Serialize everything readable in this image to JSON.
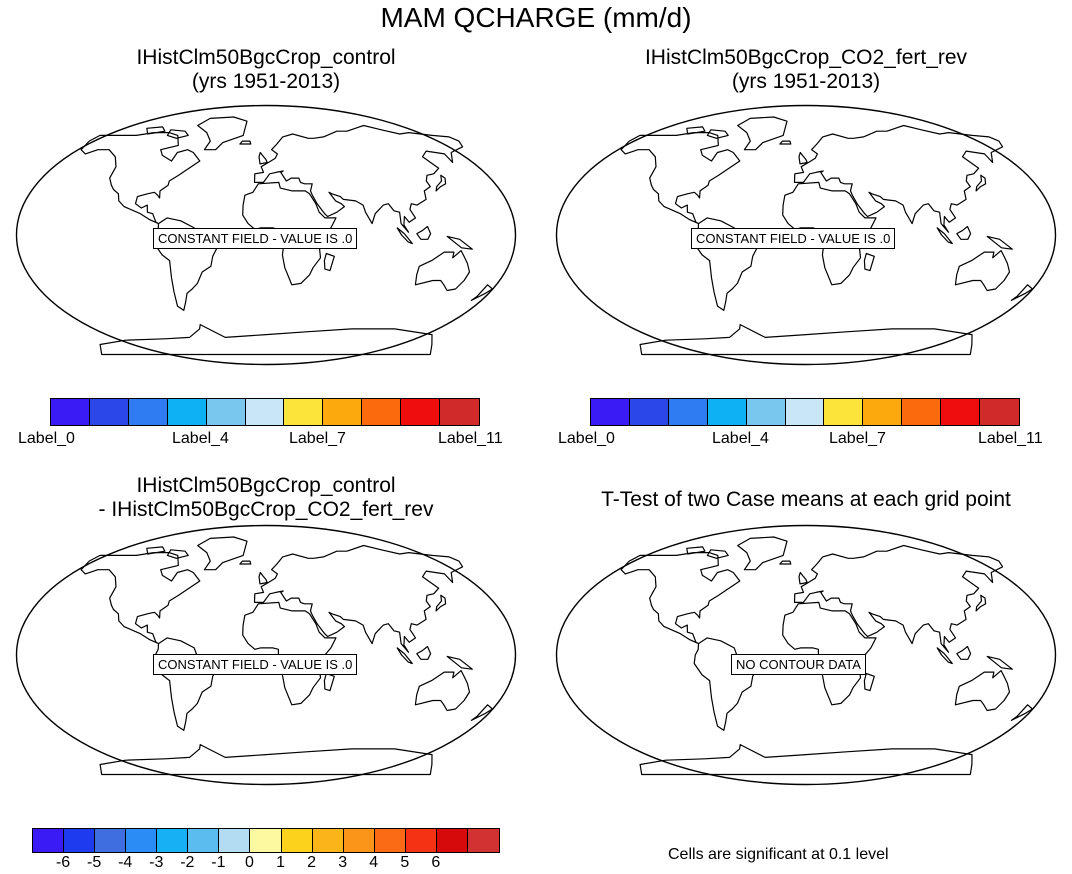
{
  "title": "MAM QCHARGE (mm/d)",
  "panels": [
    {
      "title_line1": "IHistClm50BgcCrop_control",
      "title_line2": "(yrs 1951-2013)",
      "message": "CONSTANT FIELD - VALUE IS .0"
    },
    {
      "title_line1": "IHistClm50BgcCrop_CO2_fert_rev",
      "title_line2": "(yrs 1951-2013)",
      "message": "CONSTANT FIELD - VALUE IS .0"
    },
    {
      "title_line1": "IHistClm50BgcCrop_control",
      "title_line2": "- IHistClm50BgcCrop_CO2_fert_rev",
      "message": "CONSTANT FIELD - VALUE IS .0"
    },
    {
      "title_line1": "T-Test of two Case means at each grid point",
      "title_line2": "",
      "message": "NO CONTOUR DATA"
    }
  ],
  "colorbar_top": {
    "colors": [
      "#3a1af5",
      "#2b47e8",
      "#2f7cf2",
      "#0fb1f5",
      "#79c6ee",
      "#c8e6f5",
      "#fde43a",
      "#fba90c",
      "#fb6a0c",
      "#f00d0d",
      "#d02a2a"
    ],
    "labels": [
      "Label_0",
      "Label_4",
      "Label_7",
      "Label_11"
    ]
  },
  "colorbar_bottom": {
    "colors": [
      "#3a1af5",
      "#1f3bf0",
      "#3e6ee0",
      "#2c8cf5",
      "#17b0f5",
      "#5bbcf0",
      "#b2dcf2",
      "#fdf9a0",
      "#fcd21c",
      "#fbb51a",
      "#fb951a",
      "#fb6a14",
      "#f53214",
      "#d60a0a",
      "#d23232"
    ],
    "labels": [
      "-6",
      "-5",
      "-4",
      "-3",
      "-2",
      "-1",
      "0",
      "1",
      "2",
      "3",
      "4",
      "5",
      "6"
    ]
  },
  "note": "Cells are significant at 0.1 level"
}
